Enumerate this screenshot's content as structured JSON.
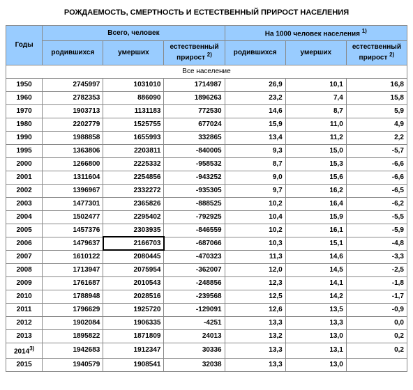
{
  "title": "РОЖДАЕМОСТЬ, СМЕРТНОСТЬ И ЕСТЕСТВЕННЫЙ ПРИРОСТ НАСЕЛЕНИЯ",
  "header": {
    "years": "Годы",
    "total_people": "Всего, человек",
    "per_1000": "На 1000 человек населения",
    "footnote1": "1)",
    "born": "родившихся",
    "died": "умерших",
    "natural_increase": "естественный прирост",
    "footnote2": "2)",
    "all_population": "Все население"
  },
  "columns": {
    "widths": [
      "48px",
      "80px",
      "80px",
      "80px",
      "80px",
      "80px",
      "80px"
    ],
    "header_bg": "#99ccff",
    "border_color": "#888888",
    "text_color": "#000000",
    "font_size_pt": 10,
    "header_font_weight": "bold"
  },
  "selected": {
    "row": 13,
    "col": 2
  },
  "rows": [
    {
      "year": "1950",
      "born": "2745997",
      "died": "1031010",
      "inc": "1714987",
      "born_r": "26,9",
      "died_r": "10,1",
      "inc_r": "16,8"
    },
    {
      "year": "1960",
      "born": "2782353",
      "died": "886090",
      "inc": "1896263",
      "born_r": "23,2",
      "died_r": "7,4",
      "inc_r": "15,8"
    },
    {
      "year": "1970",
      "born": "1903713",
      "died": "1131183",
      "inc": "772530",
      "born_r": "14,6",
      "died_r": "8,7",
      "inc_r": "5,9"
    },
    {
      "year": "1980",
      "born": "2202779",
      "died": "1525755",
      "inc": "677024",
      "born_r": "15,9",
      "died_r": "11,0",
      "inc_r": "4,9"
    },
    {
      "year": "1990",
      "born": "1988858",
      "died": "1655993",
      "inc": "332865",
      "born_r": "13,4",
      "died_r": "11,2",
      "inc_r": "2,2"
    },
    {
      "year": "1995",
      "born": "1363806",
      "died": "2203811",
      "inc": "-840005",
      "born_r": "9,3",
      "died_r": "15,0",
      "inc_r": "-5,7"
    },
    {
      "year": "2000",
      "born": "1266800",
      "died": "2225332",
      "inc": "-958532",
      "born_r": "8,7",
      "died_r": "15,3",
      "inc_r": "-6,6"
    },
    {
      "year": "2001",
      "born": "1311604",
      "died": "2254856",
      "inc": "-943252",
      "born_r": "9,0",
      "died_r": "15,6",
      "inc_r": "-6,6"
    },
    {
      "year": "2002",
      "born": "1396967",
      "died": "2332272",
      "inc": "-935305",
      "born_r": "9,7",
      "died_r": "16,2",
      "inc_r": "-6,5"
    },
    {
      "year": "2003",
      "born": "1477301",
      "died": "2365826",
      "inc": "-888525",
      "born_r": "10,2",
      "died_r": "16,4",
      "inc_r": "-6,2"
    },
    {
      "year": "2004",
      "born": "1502477",
      "died": "2295402",
      "inc": "-792925",
      "born_r": "10,4",
      "died_r": "15,9",
      "inc_r": "-5,5"
    },
    {
      "year": "2005",
      "born": "1457376",
      "died": "2303935",
      "inc": "-846559",
      "born_r": "10,2",
      "died_r": "16,1",
      "inc_r": "-5,9"
    },
    {
      "year": "2006",
      "born": "1479637",
      "died": "2166703",
      "inc": "-687066",
      "born_r": "10,3",
      "died_r": "15,1",
      "inc_r": "-4,8"
    },
    {
      "year": "2007",
      "born": "1610122",
      "died": "2080445",
      "inc": "-470323",
      "born_r": "11,3",
      "died_r": "14,6",
      "inc_r": "-3,3"
    },
    {
      "year": "2008",
      "born": "1713947",
      "died": "2075954",
      "inc": "-362007",
      "born_r": "12,0",
      "died_r": "14,5",
      "inc_r": "-2,5"
    },
    {
      "year": "2009",
      "born": "1761687",
      "died": "2010543",
      "inc": "-248856",
      "born_r": "12,3",
      "died_r": "14,1",
      "inc_r": "-1,8"
    },
    {
      "year": "2010",
      "born": "1788948",
      "died": "2028516",
      "inc": "-239568",
      "born_r": "12,5",
      "died_r": "14,2",
      "inc_r": "-1,7"
    },
    {
      "year": "2011",
      "born": "1796629",
      "died": "1925720",
      "inc": "-129091",
      "born_r": "12,6",
      "died_r": "13,5",
      "inc_r": "-0,9"
    },
    {
      "year": "2012",
      "born": "1902084",
      "died": "1906335",
      "inc": "-4251",
      "born_r": "13,3",
      "died_r": "13,3",
      "inc_r": "0,0"
    },
    {
      "year": "2013",
      "born": "1895822",
      "died": "1871809",
      "inc": "24013",
      "born_r": "13,2",
      "died_r": "13,0",
      "inc_r": "0,2"
    },
    {
      "year": "2014",
      "year_note": "3)",
      "born": "1942683",
      "died": "1912347",
      "inc": "30336",
      "born_r": "13,3",
      "died_r": "13,1",
      "inc_r": "0,2"
    },
    {
      "year": "2015",
      "born": "1940579",
      "died": "1908541",
      "inc": "32038",
      "born_r": "13,3",
      "died_r": "13,0",
      "inc_r": ""
    }
  ]
}
